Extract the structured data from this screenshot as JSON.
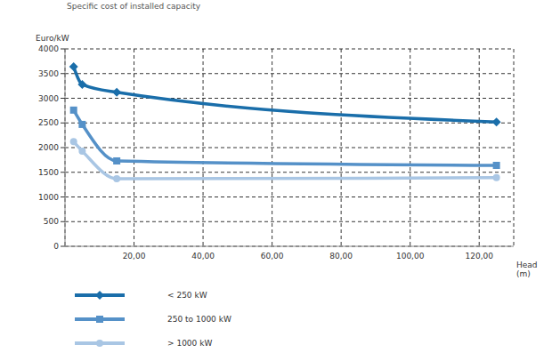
{
  "chart_data": {
    "type": "line",
    "title": "Specific cost of installed capacity",
    "y_label": "Euro/kW",
    "x_label": "Head (m)",
    "x": [
      2.5,
      5,
      15,
      125
    ],
    "series": [
      {
        "name": "< 250 kW",
        "color": "#1a6eaa",
        "marker": "diamond",
        "values": [
          3640,
          3280,
          3120,
          2520
        ]
      },
      {
        "name": "250 to 1000 kW",
        "color": "#5591c8",
        "marker": "square",
        "values": [
          2760,
          2470,
          1730,
          1640
        ]
      },
      {
        "name": "> 1000 kW",
        "color": "#a9c6e4",
        "marker": "circle",
        "values": [
          2120,
          1930,
          1370,
          1390
        ]
      }
    ],
    "xlim": [
      0,
      130
    ],
    "xticks": [
      {
        "value": 20,
        "label": "20,00"
      },
      {
        "value": 40,
        "label": "40,00"
      },
      {
        "value": 60,
        "label": "60,00"
      },
      {
        "value": 80,
        "label": "80,00"
      },
      {
        "value": 100,
        "label": "100,00"
      },
      {
        "value": 120,
        "label": "120,00"
      }
    ],
    "ylim": [
      0,
      4000
    ],
    "yticks": [
      0,
      500,
      1000,
      1500,
      2000,
      2500,
      3000,
      3500,
      4000
    ],
    "grid": true,
    "legend": "bottom left"
  }
}
